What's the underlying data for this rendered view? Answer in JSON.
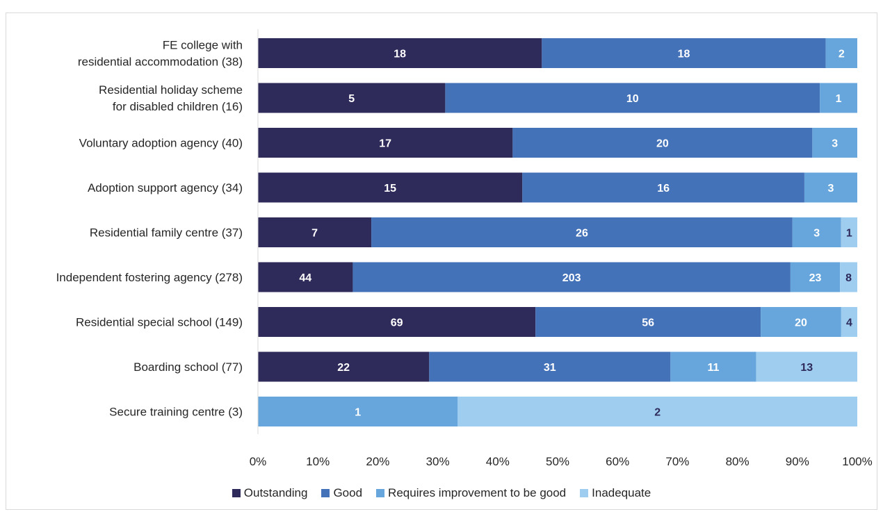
{
  "chart_data": {
    "type": "bar",
    "orientation": "horizontal",
    "stacked": "percent",
    "categories": [
      [
        "FE college with",
        "residential accommodation (38)"
      ],
      [
        "Residential holiday scheme",
        "for disabled children (16)"
      ],
      [
        "Voluntary adoption agency (40)"
      ],
      [
        "Adoption support agency (34)"
      ],
      [
        "Residential family centre (37)"
      ],
      [
        "Independent fostering agency (278)"
      ],
      [
        "Residential special school (149)"
      ],
      [
        "Boarding school (77)"
      ],
      [
        "Secure training centre (3)"
      ]
    ],
    "series": [
      {
        "name": "Outstanding",
        "color": "#2e2a5a",
        "label_color": "#ffffff",
        "values": [
          18,
          5,
          17,
          15,
          7,
          44,
          69,
          22,
          0
        ]
      },
      {
        "name": "Good",
        "color": "#4472b8",
        "label_color": "#ffffff",
        "values": [
          18,
          10,
          20,
          16,
          26,
          203,
          56,
          31,
          0
        ]
      },
      {
        "name": "Requires improvement to be good",
        "color": "#67a6dc",
        "label_color": "#ffffff",
        "values": [
          2,
          1,
          3,
          3,
          3,
          23,
          20,
          11,
          1
        ]
      },
      {
        "name": "Inadequate",
        "color": "#9fcdf0",
        "label_color": "#2e2a5a",
        "values": [
          0,
          0,
          0,
          0,
          1,
          8,
          4,
          13,
          2
        ]
      }
    ],
    "xticks": [
      "0%",
      "10%",
      "20%",
      "30%",
      "40%",
      "50%",
      "60%",
      "70%",
      "80%",
      "90%",
      "100%"
    ],
    "xlim": [
      0,
      100
    ],
    "title": "",
    "xlabel": "",
    "ylabel": "",
    "grid": false,
    "legend_position": "bottom"
  }
}
